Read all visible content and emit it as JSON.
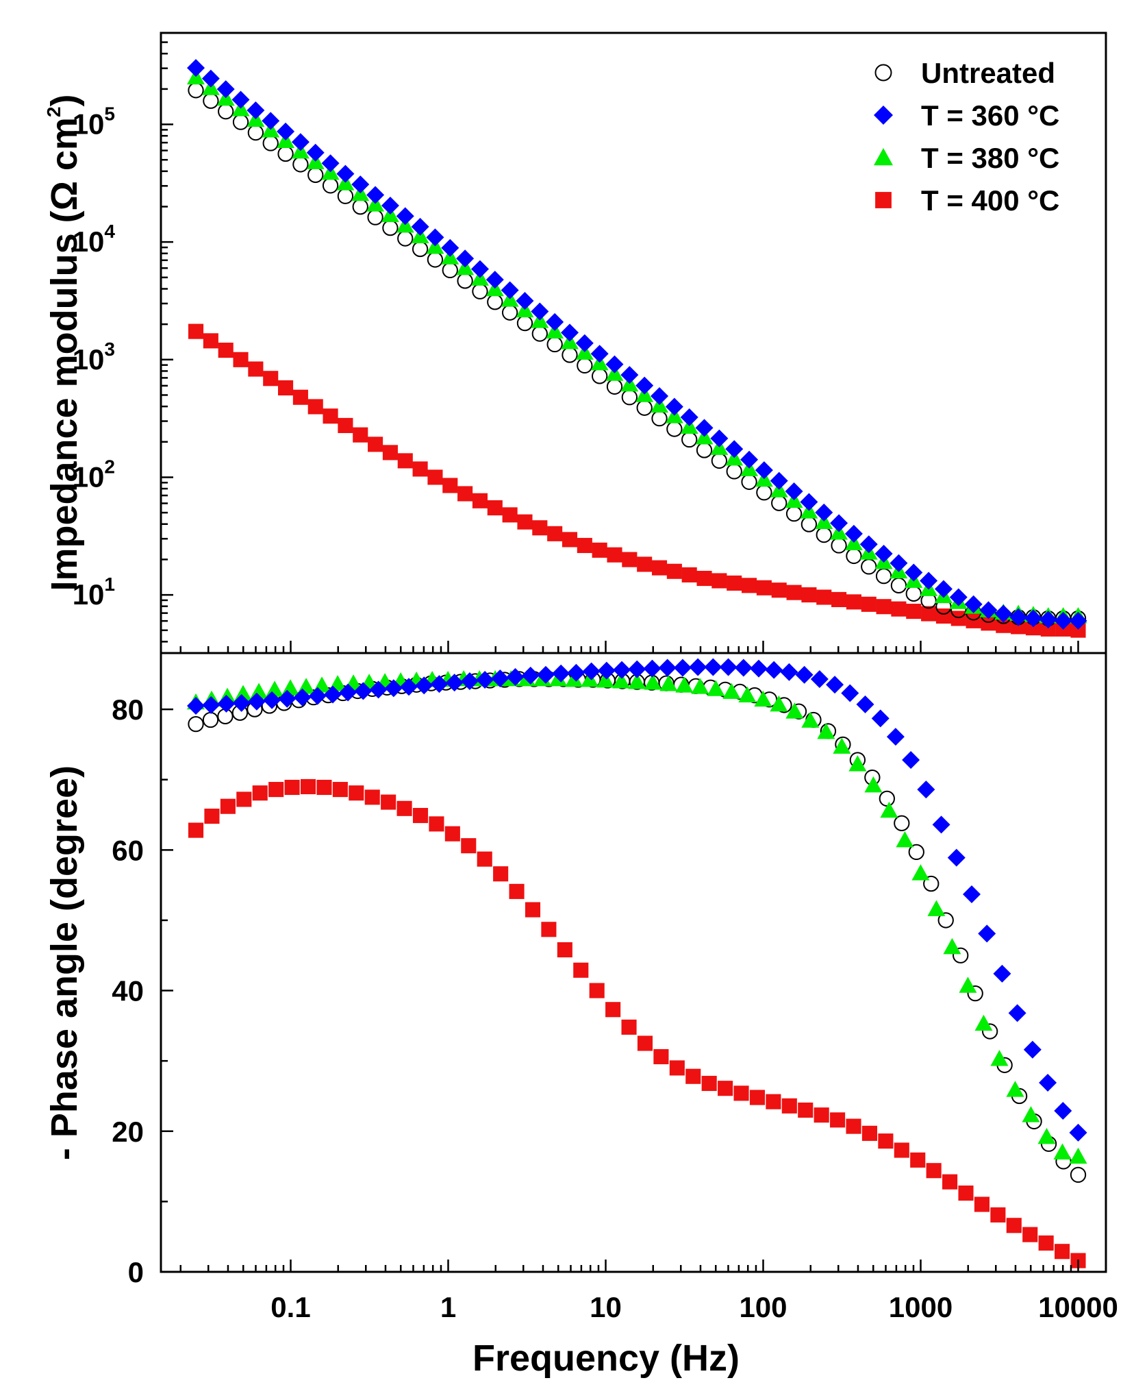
{
  "chart_data": [
    {
      "type": "scatter",
      "panel": "top",
      "xscale": "log",
      "yscale": "log",
      "xlim": [
        0.015,
        15000
      ],
      "ylim": [
        3.2,
        600000
      ],
      "ylabel": "Impedance modulus (Ω cm²)",
      "ylabel_text": "Impedance modulus (Ω cm",
      "ylabel_sup": "2",
      "ylabel_close": ")",
      "yticks": [
        {
          "value": 10,
          "base": "10",
          "exp": "1"
        },
        {
          "value": 100,
          "base": "10",
          "exp": "2"
        },
        {
          "value": 1000,
          "base": "10",
          "exp": "3"
        },
        {
          "value": 10000,
          "base": "10",
          "exp": "4"
        },
        {
          "value": 100000,
          "base": "10",
          "exp": "5"
        }
      ],
      "legend_position": "top-right",
      "series": [
        {
          "name": "Untreated",
          "marker": "open-circle",
          "color": "#000000",
          "logy": [
            5.29,
            5.2,
            5.11,
            5.02,
            4.93,
            4.84,
            4.75,
            4.66,
            4.57,
            4.48,
            4.39,
            4.3,
            4.21,
            4.12,
            4.03,
            3.94,
            3.85,
            3.76,
            3.67,
            3.58,
            3.49,
            3.4,
            3.31,
            3.22,
            3.13,
            3.04,
            2.95,
            2.86,
            2.77,
            2.68,
            2.59,
            2.5,
            2.41,
            2.32,
            2.23,
            2.14,
            2.05,
            1.96,
            1.87,
            1.78,
            1.69,
            1.6,
            1.51,
            1.42,
            1.33,
            1.24,
            1.16,
            1.08,
            1.01,
            0.95,
            0.9,
            0.87,
            0.85,
            0.83,
            0.82,
            0.81,
            0.81,
            0.8,
            0.8,
            0.8
          ]
        },
        {
          "name": "T = 360 °C",
          "marker": "diamond",
          "color": "#0000ff",
          "logy": [
            5.48,
            5.39,
            5.3,
            5.21,
            5.12,
            5.03,
            4.94,
            4.85,
            4.76,
            4.67,
            4.58,
            4.49,
            4.4,
            4.31,
            4.22,
            4.13,
            4.04,
            3.95,
            3.86,
            3.77,
            3.68,
            3.59,
            3.5,
            3.41,
            3.32,
            3.23,
            3.14,
            3.05,
            2.96,
            2.87,
            2.78,
            2.69,
            2.6,
            2.51,
            2.42,
            2.33,
            2.24,
            2.15,
            2.06,
            1.97,
            1.88,
            1.79,
            1.7,
            1.61,
            1.52,
            1.43,
            1.35,
            1.27,
            1.19,
            1.12,
            1.05,
            0.98,
            0.92,
            0.87,
            0.84,
            0.81,
            0.8,
            0.79,
            0.78,
            0.78
          ]
        },
        {
          "name": "T = 380 °C",
          "marker": "triangle",
          "color": "#00ee00",
          "logy": [
            5.4,
            5.31,
            5.22,
            5.13,
            5.04,
            4.95,
            4.86,
            4.77,
            4.68,
            4.59,
            4.5,
            4.41,
            4.32,
            4.23,
            4.14,
            4.05,
            3.96,
            3.87,
            3.78,
            3.69,
            3.6,
            3.51,
            3.42,
            3.33,
            3.24,
            3.15,
            3.06,
            2.97,
            2.88,
            2.79,
            2.7,
            2.61,
            2.52,
            2.43,
            2.34,
            2.25,
            2.16,
            2.07,
            1.98,
            1.89,
            1.8,
            1.71,
            1.62,
            1.53,
            1.44,
            1.36,
            1.28,
            1.2,
            1.12,
            1.05,
            0.99,
            0.94,
            0.9,
            0.87,
            0.85,
            0.84,
            0.83,
            0.82,
            0.82,
            0.82
          ]
        },
        {
          "name": "T = 400 °C",
          "marker": "square",
          "color": "#ee1111",
          "logy": [
            3.24,
            3.16,
            3.08,
            3.0,
            2.92,
            2.84,
            2.76,
            2.68,
            2.6,
            2.52,
            2.44,
            2.36,
            2.28,
            2.21,
            2.14,
            2.07,
            2.0,
            1.93,
            1.86,
            1.8,
            1.74,
            1.68,
            1.62,
            1.57,
            1.52,
            1.47,
            1.42,
            1.38,
            1.34,
            1.3,
            1.26,
            1.23,
            1.2,
            1.17,
            1.14,
            1.12,
            1.1,
            1.08,
            1.06,
            1.04,
            1.02,
            1.0,
            0.98,
            0.96,
            0.94,
            0.92,
            0.9,
            0.88,
            0.86,
            0.84,
            0.82,
            0.8,
            0.78,
            0.76,
            0.74,
            0.73,
            0.72,
            0.71,
            0.71,
            0.7
          ]
        }
      ]
    },
    {
      "type": "scatter",
      "panel": "bottom",
      "xscale": "log",
      "yscale": "linear",
      "xlim": [
        0.015,
        15000
      ],
      "ylim": [
        0,
        88
      ],
      "xlabel": "Frequency (Hz)",
      "ylabel": "- Phase angle (degree)",
      "xticks": [
        {
          "value": 0.1,
          "label": "0.1"
        },
        {
          "value": 1,
          "label": "1"
        },
        {
          "value": 10,
          "label": "10"
        },
        {
          "value": 100,
          "label": "100"
        },
        {
          "value": 1000,
          "label": "1000"
        },
        {
          "value": 10000,
          "label": "10000"
        }
      ],
      "yticks": [
        {
          "value": 0,
          "label": "0"
        },
        {
          "value": 20,
          "label": "20"
        },
        {
          "value": 40,
          "label": "40"
        },
        {
          "value": 60,
          "label": "60"
        },
        {
          "value": 80,
          "label": "80"
        }
      ],
      "series": [
        {
          "name": "Untreated",
          "marker": "open-circle",
          "color": "#000000",
          "y": [
            77.9,
            78.5,
            79.0,
            79.5,
            80.0,
            80.5,
            80.9,
            81.3,
            81.7,
            82.0,
            82.3,
            82.6,
            82.9,
            83.1,
            83.3,
            83.5,
            83.7,
            83.8,
            83.9,
            84.0,
            84.1,
            84.2,
            84.3,
            84.3,
            84.3,
            84.3,
            84.2,
            84.2,
            84.1,
            84.0,
            83.9,
            83.8,
            83.7,
            83.5,
            83.3,
            83.1,
            82.8,
            82.5,
            82.0,
            81.4,
            80.6,
            79.7,
            78.5,
            76.9,
            75.0,
            72.8,
            70.3,
            67.3,
            63.8,
            59.7,
            55.2,
            50.0,
            45.0,
            39.6,
            34.2,
            29.4,
            25.0,
            21.4,
            18.2,
            15.7,
            13.8
          ]
        },
        {
          "name": "T = 360 °C",
          "marker": "diamond",
          "color": "#0000ff",
          "y": [
            80.5,
            80.6,
            80.8,
            80.9,
            81.1,
            81.3,
            81.5,
            81.7,
            81.9,
            82.1,
            82.4,
            82.6,
            82.8,
            83.0,
            83.2,
            83.4,
            83.6,
            83.8,
            84.0,
            84.2,
            84.4,
            84.6,
            84.8,
            84.9,
            85.1,
            85.2,
            85.4,
            85.5,
            85.6,
            85.7,
            85.8,
            85.9,
            85.9,
            86.0,
            86.0,
            86.0,
            85.9,
            85.8,
            85.6,
            85.3,
            84.9,
            84.3,
            83.5,
            82.3,
            80.7,
            78.7,
            76.1,
            72.8,
            68.6,
            63.6,
            58.9,
            53.7,
            48.1,
            42.4,
            36.8,
            31.6,
            26.9,
            22.9,
            19.8
          ]
        },
        {
          "name": "T = 380 °C",
          "marker": "triangle",
          "color": "#00ee00",
          "y": [
            81.0,
            81.4,
            81.8,
            82.2,
            82.5,
            82.8,
            83.0,
            83.2,
            83.4,
            83.6,
            83.7,
            83.8,
            83.9,
            84.0,
            84.1,
            84.2,
            84.2,
            84.3,
            84.3,
            84.3,
            84.3,
            84.3,
            84.3,
            84.3,
            84.2,
            84.2,
            84.1,
            84.0,
            83.9,
            83.8,
            83.6,
            83.4,
            83.2,
            82.9,
            82.5,
            82.0,
            81.4,
            80.7,
            79.7,
            78.4,
            76.8,
            74.7,
            72.2,
            69.2,
            65.6,
            61.4,
            56.7,
            51.6,
            46.2,
            40.7,
            35.3,
            30.3,
            25.9,
            22.3,
            19.2,
            17.0,
            16.4
          ]
        },
        {
          "name": "T = 400 °C",
          "marker": "square",
          "color": "#ee1111",
          "y": [
            62.8,
            64.8,
            66.2,
            67.2,
            68.1,
            68.6,
            68.9,
            69.0,
            68.9,
            68.6,
            68.1,
            67.5,
            66.8,
            65.9,
            64.9,
            63.7,
            62.3,
            60.6,
            58.7,
            56.6,
            54.1,
            51.5,
            48.7,
            45.8,
            42.9,
            40.0,
            37.3,
            34.8,
            32.5,
            30.6,
            29.0,
            27.8,
            26.8,
            26.1,
            25.4,
            24.8,
            24.2,
            23.6,
            23.0,
            22.3,
            21.6,
            20.7,
            19.7,
            18.6,
            17.3,
            15.9,
            14.4,
            12.8,
            11.2,
            9.6,
            8.1,
            6.6,
            5.3,
            4.1,
            2.9,
            1.6
          ]
        }
      ]
    }
  ]
}
